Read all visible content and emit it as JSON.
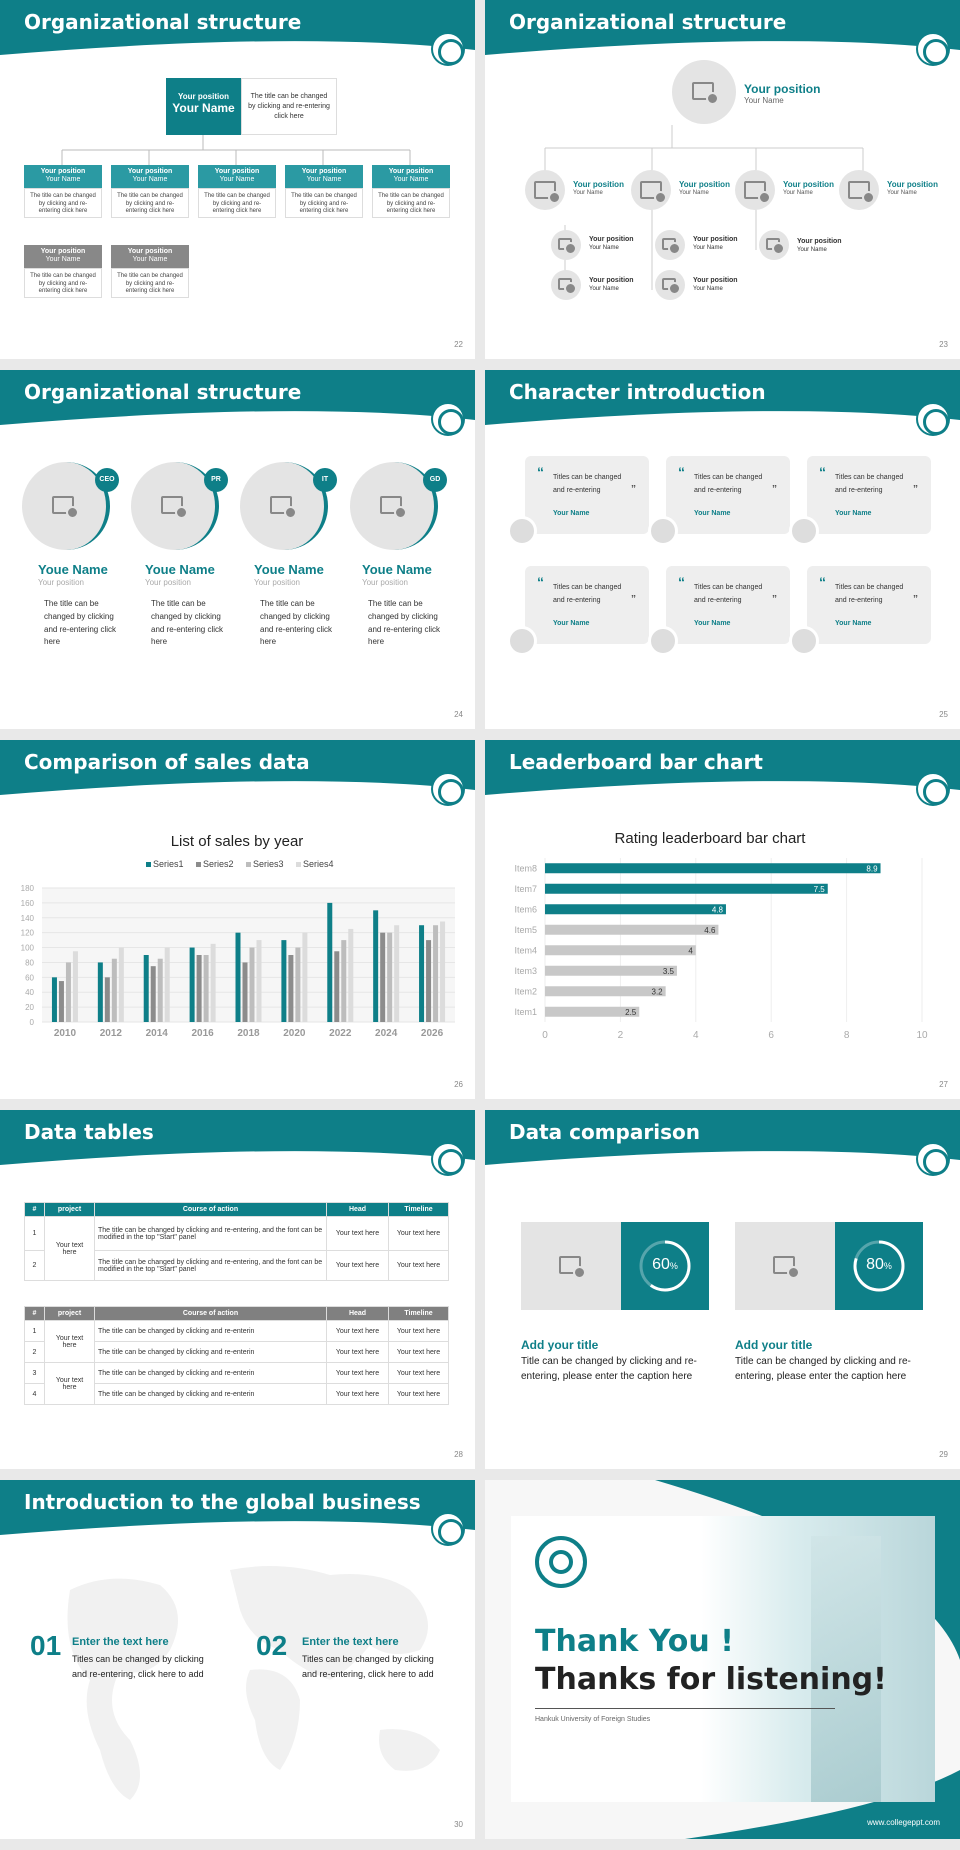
{
  "colors": {
    "teal": "#0e7f88",
    "teal_light": "#2b9aa3",
    "gray": "#888888",
    "bar_gray": "#c8c8c8"
  },
  "slides": {
    "s22": {
      "title": "Organizational structure",
      "top_position": "Your position",
      "top_name": "Your Name",
      "top_desc": "The title can be changed by clicking and re-entering click here",
      "boxes": [
        {
          "position": "Your position",
          "name": "Your Name",
          "desc": "The title can be changed by clicking and re-entering click here"
        },
        {
          "position": "Your position",
          "name": "Your Name",
          "desc": "The title can be changed by clicking and re-entering click here"
        },
        {
          "position": "Your position",
          "name": "Your Name",
          "desc": "The title can be changed by clicking and re-entering click here"
        },
        {
          "position": "Your position",
          "name": "Your Name",
          "desc": "The title can be changed by clicking and re-entering click here"
        },
        {
          "position": "Your position",
          "name": "Your Name",
          "desc": "The title can be changed by clicking and re-entering click here"
        },
        {
          "position": "Your position",
          "name": "Your Name",
          "desc": "The title can be changed by clicking and re-entering click here"
        },
        {
          "position": "Your position",
          "name": "Your Name",
          "desc": "The title can be changed by clicking and re-entering click here"
        }
      ],
      "page": "22"
    },
    "s23": {
      "title": "Organizational structure",
      "top_position": "Your position",
      "top_name": "Your Name",
      "nodes": [
        {
          "position": "Your position",
          "name": "Your Name"
        },
        {
          "position": "Your position",
          "name": "Your Name"
        },
        {
          "position": "Your position",
          "name": "Your Name"
        },
        {
          "position": "Your position",
          "name": "Your Name"
        }
      ],
      "subs": [
        {
          "position": "Your position",
          "name": "Your Name"
        },
        {
          "position": "Your position",
          "name": "Your Name"
        },
        {
          "position": "Your position",
          "name": "Your Name"
        },
        {
          "position": "Your position",
          "name": "Your Name"
        },
        {
          "position": "Your position",
          "name": "Your Name"
        }
      ],
      "page": "23"
    },
    "s24": {
      "title": "Organizational structure",
      "people": [
        {
          "badge": "CEO",
          "name": "Youe Name",
          "position": "Your position",
          "desc": "The title can be changed by clicking and re-entering click here"
        },
        {
          "badge": "PR",
          "name": "Youe Name",
          "position": "Your position",
          "desc": "The title can be changed by clicking and re-entering click here"
        },
        {
          "badge": "IT",
          "name": "Youe Name",
          "position": "Your position",
          "desc": "The title can be changed by clicking and re-entering click here"
        },
        {
          "badge": "GD",
          "name": "Youe Name",
          "position": "Your position",
          "desc": "The title can be changed by clicking and re-entering click here"
        }
      ],
      "page": "24"
    },
    "s25": {
      "title": "Character introduction",
      "cards": [
        {
          "text": "Titles can be changed and re-entering",
          "name": "Your Name"
        },
        {
          "text": "Titles can be changed and re-entering",
          "name": "Your Name"
        },
        {
          "text": "Titles can be changed and re-entering",
          "name": "Your Name"
        },
        {
          "text": "Titles can be changed and re-entering",
          "name": "Your Name"
        },
        {
          "text": "Titles can be changed and re-entering",
          "name": "Your Name"
        },
        {
          "text": "Titles can be changed and re-entering",
          "name": "Your Name"
        }
      ],
      "page": "25"
    },
    "s26": {
      "title": "Comparison of sales data",
      "page": "26"
    },
    "s27": {
      "title": "Leaderboard bar chart",
      "page": "27"
    },
    "s28": {
      "title": "Data tables",
      "table1": {
        "headers": [
          "#",
          "project",
          "Course of action",
          "Head",
          "Timeline"
        ],
        "merged": "Your text here",
        "rows": [
          {
            "n": "1",
            "action": "The title can be changed by clicking and re-entering, and the font can be modified in the top \"Start\" panel",
            "head": "Your text here",
            "time": "Your text here"
          },
          {
            "n": "2",
            "action": "The title can be changed by clicking and re-entering, and the font can be modified in the top \"Start\" panel",
            "head": "Your text here",
            "time": "Your text here"
          }
        ]
      },
      "table2": {
        "headers": [
          "#",
          "project",
          "Course of action",
          "Head",
          "Timeline"
        ],
        "merged_a": "Your text here",
        "merged_b": "Your text here",
        "rows": [
          {
            "n": "1",
            "action": "The title can be changed by clicking and re-enterin",
            "head": "Your text here",
            "time": "Your text here"
          },
          {
            "n": "2",
            "action": "The title can be changed by clicking and re-enterin",
            "head": "Your text here",
            "time": "Your text here"
          },
          {
            "n": "3",
            "action": "The title can be changed by clicking and re-enterin",
            "head": "Your text here",
            "time": "Your text here"
          },
          {
            "n": "4",
            "action": "The title can be changed by clicking and re-enterin",
            "head": "Your text here",
            "time": "Your text here"
          }
        ]
      },
      "page": "28"
    },
    "s29": {
      "title": "Data comparison",
      "items": [
        {
          "value": "60",
          "unit": "%",
          "percent": 0.6,
          "title": "Add your title",
          "desc": "Title can be changed by clicking and re-entering, please enter the caption here"
        },
        {
          "value": "80",
          "unit": "%",
          "percent": 0.8,
          "title": "Add your title",
          "desc": "Title can be changed by clicking and re-entering, please enter the caption here"
        }
      ],
      "page": "29"
    },
    "s30": {
      "title": "Introduction to the global business",
      "items": [
        {
          "num": "01",
          "head": "Enter the text here",
          "desc": "Titles can be changed by clicking and re-entering, click here to add"
        },
        {
          "num": "02",
          "head": "Enter the text here",
          "desc": "Titles can be changed by clicking and re-entering, click here to add"
        }
      ],
      "page": "30"
    },
    "s31": {
      "line1": "Thank You !",
      "line2": "Thanks for listening!",
      "university": "Hankuk University of Foreign Studies",
      "url": "www.collegeppt.com"
    }
  },
  "chart_data": [
    {
      "type": "bar",
      "title": "List of sales by year",
      "categories": [
        "2010",
        "2012",
        "2014",
        "2016",
        "2018",
        "2020",
        "2022",
        "2024",
        "2026"
      ],
      "series": [
        {
          "name": "Series1",
          "color": "#0e7f88",
          "values": [
            60,
            80,
            90,
            100,
            120,
            110,
            160,
            150,
            130
          ]
        },
        {
          "name": "Series2",
          "color": "#8c8c8c",
          "values": [
            55,
            60,
            75,
            90,
            80,
            90,
            95,
            120,
            110
          ]
        },
        {
          "name": "Series3",
          "color": "#bdbdbd",
          "values": [
            80,
            85,
            85,
            90,
            100,
            100,
            110,
            120,
            130
          ]
        },
        {
          "name": "Series4",
          "color": "#dcdcdc",
          "values": [
            95,
            100,
            100,
            105,
            110,
            120,
            125,
            130,
            135
          ]
        }
      ],
      "ylim": [
        0,
        180
      ],
      "yticks": [
        0,
        20,
        40,
        60,
        80,
        100,
        120,
        140,
        160,
        180
      ],
      "legend": "top"
    },
    {
      "type": "bar",
      "orientation": "horizontal",
      "title": "Rating leaderboard bar chart",
      "categories": [
        "Item8",
        "Item7",
        "Item6",
        "Item5",
        "Item4",
        "Item3",
        "Item2",
        "Item1"
      ],
      "values": [
        8.9,
        7.5,
        4.8,
        4.6,
        4,
        3.5,
        3.2,
        2.5
      ],
      "value_labels": [
        "8.9",
        "7.5",
        "4.8",
        "4.6",
        "4",
        "3.5",
        "3.2",
        "2.5"
      ],
      "highlight_count": 3,
      "xlim": [
        0,
        10
      ],
      "xticks": [
        0,
        2,
        4,
        6,
        8,
        10
      ]
    }
  ]
}
